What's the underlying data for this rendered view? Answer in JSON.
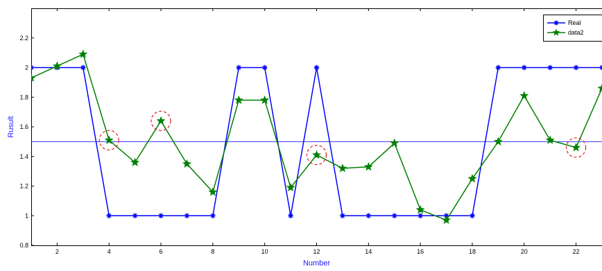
{
  "chart_data": {
    "type": "line",
    "xlabel": "Number",
    "ylabel": "Rusult",
    "xlim": [
      1,
      23
    ],
    "ylim": [
      0.8,
      2.4
    ],
    "x_ticks": [
      2,
      4,
      6,
      8,
      10,
      12,
      14,
      16,
      18,
      20,
      22
    ],
    "y_ticks": [
      0.8,
      1,
      1.2,
      1.4,
      1.6,
      1.8,
      2,
      2.2
    ],
    "x": [
      1,
      2,
      3,
      4,
      5,
      6,
      7,
      8,
      9,
      10,
      11,
      12,
      13,
      14,
      15,
      16,
      17,
      18,
      19,
      20,
      21,
      22,
      23
    ],
    "series": [
      {
        "name": "Real",
        "color": "#0000ff",
        "marker": "asterisk",
        "values": [
          2,
          2,
          2,
          1,
          1,
          1,
          1,
          1,
          2,
          2,
          1,
          2,
          1,
          1,
          1,
          1,
          1,
          1,
          2,
          2,
          2,
          2,
          2
        ]
      },
      {
        "name": "data2",
        "color": "#008000",
        "marker": "star",
        "values": [
          1.93,
          2.01,
          2.09,
          1.51,
          1.36,
          1.64,
          1.35,
          1.16,
          1.78,
          1.78,
          1.19,
          1.41,
          1.32,
          1.33,
          1.49,
          1.04,
          0.97,
          1.25,
          1.5,
          1.81,
          1.51,
          1.46,
          1.86
        ]
      }
    ],
    "reference_line": {
      "y": 1.5,
      "color": "#0000ff"
    },
    "highlighted_points": [
      {
        "x": 4,
        "y": 1.51
      },
      {
        "x": 6,
        "y": 1.64
      },
      {
        "x": 12,
        "y": 1.41
      },
      {
        "x": 22,
        "y": 1.46
      }
    ],
    "highlight_color": "#e02020",
    "legend_position": "top-right",
    "grid": false
  }
}
